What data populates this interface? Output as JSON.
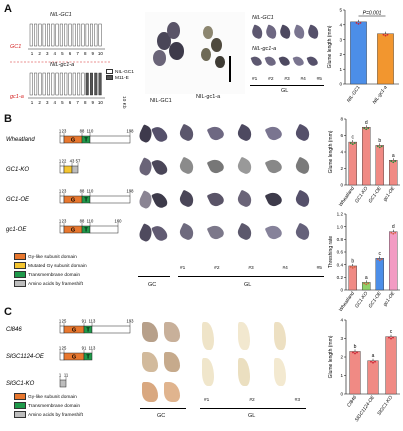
{
  "panels": {
    "a": "A",
    "b": "B",
    "c": "C"
  },
  "colors": {
    "g_domain": "#e8772e",
    "mutated_g": "#f4c531",
    "transmembrane": "#1f9a4b",
    "frameshift": "#bdbdbd",
    "bar_red": "#f08a84",
    "bar_blue": "#4c8ee8",
    "bar_orange": "#f2962f",
    "bar_green": "#8fd26a",
    "bar_pink": "#f29bc3"
  },
  "panel_a": {
    "top_label": "NIL-GC1",
    "bottom_label": "NIL-gc1-a",
    "gene_top": "GC1",
    "gene_bottom": "gc1-a",
    "marker_ticks": [
      "1",
      "2",
      "3",
      "4",
      "5",
      "6",
      "7",
      "8",
      "9",
      "10"
    ],
    "scale_text": "10 Kb",
    "legend": [
      "NIL-GC1",
      "M11-E"
    ],
    "photo_labels": [
      "NIL-GC1",
      "NIL-gc1-a"
    ],
    "gl_row_labels": [
      "NIL-GC1",
      "NIL-gc1-a"
    ],
    "gl_numbers": [
      "#1",
      "#2",
      "#3",
      "#4",
      "#5"
    ],
    "gl_caption": "GL",
    "pvalue": "P=0.001"
  },
  "panel_b": {
    "constructs": [
      {
        "name": "Wheatland",
        "nums": [
          "1",
          "23",
          "88",
          "110",
          "198"
        ]
      },
      {
        "name": "GC1-KO",
        "nums": [
          "1",
          "22",
          "43",
          "57"
        ]
      },
      {
        "name": "GC1-OE",
        "nums": [
          "1",
          "23",
          "88",
          "110",
          "198"
        ]
      },
      {
        "name": "gc1-OE",
        "nums": [
          "1",
          "23",
          "88",
          "110",
          "160"
        ]
      }
    ],
    "domain_letters": [
      "G",
      "T"
    ],
    "legend": [
      "Gγ-like subunit domain",
      "Mutated Gγ subunit domain",
      "Transmembrane domain",
      "Amino acids by frameshift"
    ],
    "gc_caption": "GC",
    "gl_caption": "GL",
    "gl_numbers": [
      "#1",
      "#2",
      "#3",
      "#4",
      "#5"
    ]
  },
  "panel_c": {
    "constructs": [
      {
        "name": "Cl846",
        "nums": [
          "1",
          "25",
          "91",
          "113",
          "193"
        ]
      },
      {
        "name": "SlGC1124-OE",
        "nums": [
          "1",
          "25",
          "91",
          "113"
        ]
      },
      {
        "name": "SlGC1-KO",
        "nums": [
          "1",
          "11"
        ]
      }
    ],
    "legend": [
      "Gγ-like subunit domain",
      "Transmembrane domain",
      "Amino acids by frameshift"
    ],
    "gc_caption": "GC",
    "gl_caption": "GL",
    "gl_numbers": [
      "#1",
      "#2",
      "#3"
    ]
  },
  "chart_data": [
    {
      "type": "bar",
      "categories": [
        "NIL-GC1",
        "NIL-gc1-a"
      ],
      "values": [
        4.2,
        3.4
      ],
      "ylabel": "Glume length (mm)",
      "ylim": [
        0,
        5
      ],
      "yticks": [
        "0",
        "1",
        "2",
        "3",
        "4",
        "5"
      ],
      "annotation": "P=0.001",
      "bar_colors": [
        "#4c8ee8",
        "#f2962f"
      ]
    },
    {
      "type": "bar",
      "categories": [
        "Wheatland",
        "GC1-KO",
        "GC1-OE",
        "gc1-OE"
      ],
      "values": [
        5.2,
        7.0,
        4.8,
        3.0
      ],
      "letters": [
        "c",
        "d",
        "b",
        "a"
      ],
      "ylabel": "Glume length (mm)",
      "ylim": [
        0,
        8
      ],
      "yticks": [
        "0",
        "2",
        "4",
        "6",
        "8"
      ]
    },
    {
      "type": "bar",
      "categories": [
        "Wheatland",
        "GC1-KO",
        "GC1-OE",
        "gc1-OE"
      ],
      "values": [
        0.38,
        0.12,
        0.5,
        0.92
      ],
      "letters": [
        "b",
        "a",
        "c",
        "d"
      ],
      "ylabel": "Threshing rate",
      "ylim": [
        0,
        1.2
      ],
      "yticks": [
        "0",
        "0.2",
        "0.4",
        "0.6",
        "0.8",
        "1.0",
        "1.2"
      ]
    },
    {
      "type": "bar",
      "categories": [
        "Cl846",
        "SlGC1124-OE",
        "SlGC1-KO"
      ],
      "values": [
        2.3,
        1.8,
        3.1
      ],
      "letters": [
        "b",
        "a",
        "c"
      ],
      "ylabel": "Glume length (mm)",
      "ylim": [
        0,
        4
      ],
      "yticks": [
        "0",
        "1",
        "2",
        "3",
        "4"
      ]
    }
  ]
}
